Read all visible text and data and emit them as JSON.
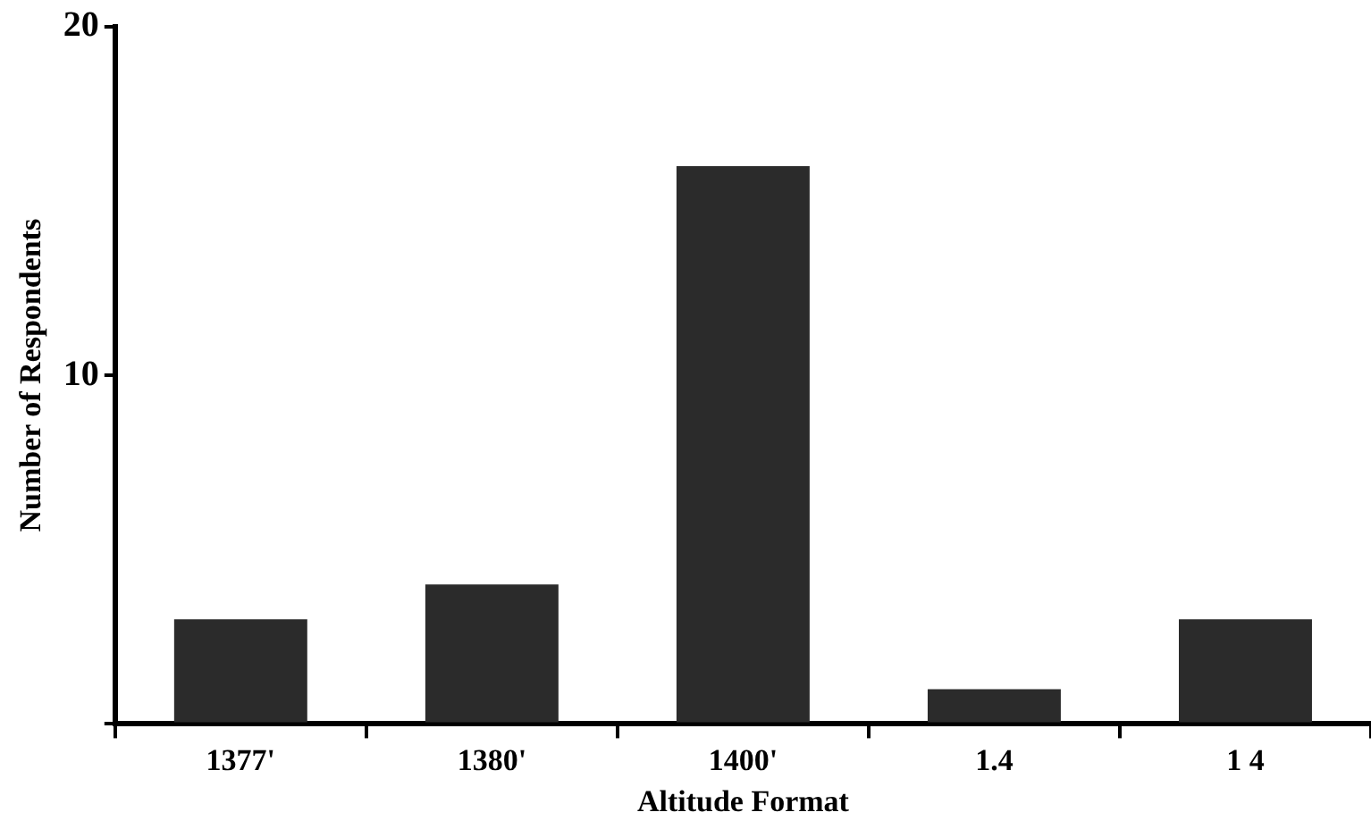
{
  "chart_data": {
    "type": "bar",
    "xlabel": "Altitude Format",
    "ylabel": "Number of Respondents",
    "categories": [
      "1377'",
      "1380'",
      "1400'",
      "1.4",
      "1 4"
    ],
    "values": [
      3,
      4,
      16,
      1,
      3
    ],
    "color": "#2b2b2b",
    "ylim": [
      0,
      20
    ],
    "yticks": [
      {
        "value": 0,
        "label": null
      },
      10,
      20
    ],
    "grid": false,
    "legend": false
  }
}
